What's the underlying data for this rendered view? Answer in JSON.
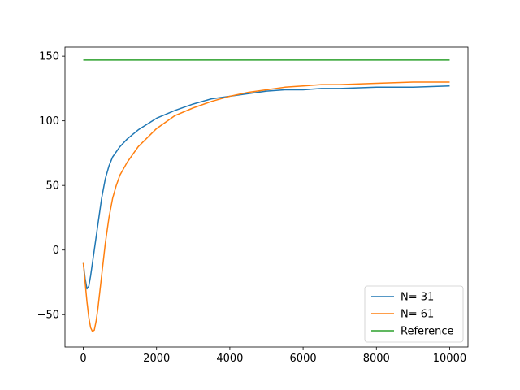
{
  "chart_data": {
    "type": "line",
    "title": "",
    "xlabel": "",
    "ylabel": "",
    "xlim": [
      -500,
      10500
    ],
    "ylim": [
      -75,
      157
    ],
    "xticks": [
      0,
      2000,
      4000,
      6000,
      8000,
      10000
    ],
    "xtick_labels": [
      "0",
      "2000",
      "4000",
      "6000",
      "8000",
      "10000"
    ],
    "yticks": [
      -50,
      0,
      50,
      100,
      150
    ],
    "ytick_labels": [
      "−50",
      "0",
      "50",
      "100",
      "150"
    ],
    "grid": false,
    "legend_position": "lower-right",
    "series": [
      {
        "name": "N= 31",
        "color": "#1f77b4",
        "x": [
          0,
          50,
          100,
          150,
          200,
          300,
          400,
          500,
          600,
          700,
          800,
          1000,
          1200,
          1500,
          2000,
          2500,
          3000,
          3500,
          4000,
          4500,
          5000,
          5500,
          6000,
          6500,
          7000,
          8000,
          9000,
          10000
        ],
        "y": [
          -10,
          -22,
          -30,
          -28,
          -20,
          0,
          20,
          40,
          55,
          65,
          72,
          80,
          86,
          93,
          102,
          108,
          113,
          117,
          119,
          121,
          123,
          124,
          124,
          125,
          125,
          126,
          126,
          127
        ]
      },
      {
        "name": "N= 61",
        "color": "#ff7f0e",
        "x": [
          0,
          50,
          100,
          150,
          200,
          250,
          300,
          350,
          400,
          500,
          600,
          700,
          800,
          900,
          1000,
          1200,
          1500,
          2000,
          2500,
          3000,
          3500,
          4000,
          4500,
          5000,
          5500,
          6000,
          6500,
          7000,
          8000,
          9000,
          10000
        ],
        "y": [
          -10,
          -25,
          -40,
          -52,
          -60,
          -63,
          -62,
          -55,
          -45,
          -20,
          5,
          25,
          40,
          50,
          58,
          68,
          80,
          94,
          104,
          110,
          115,
          119,
          122,
          124,
          126,
          127,
          128,
          128,
          129,
          130,
          130
        ]
      },
      {
        "name": "Reference",
        "color": "#2ca02c",
        "x": [
          0,
          10000
        ],
        "y": [
          147,
          147
        ]
      }
    ]
  }
}
